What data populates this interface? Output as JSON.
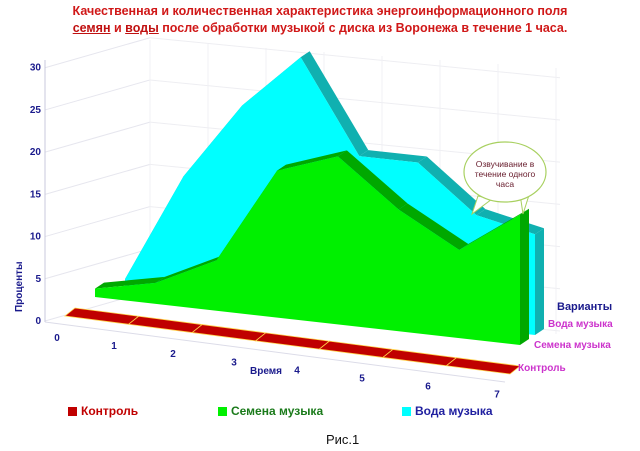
{
  "title": {
    "line1": "Качественная и количественная характеристика энергоинформационного поля",
    "line2_part1": "семян",
    "line2_part2": " и ",
    "line2_part3": "воды",
    "line2_part4": " после обработки музыкой с диска из Воронежа в течение 1 часа."
  },
  "figure_caption": "Рис.1",
  "chart_data": {
    "type": "area",
    "three_d": true,
    "x": [
      0,
      1,
      2,
      3,
      4,
      5,
      6,
      7
    ],
    "xlabel": "Время",
    "ylabel": "Проценты",
    "zlabel": "Варианты",
    "ylim": [
      0,
      30
    ],
    "yticks": [
      0,
      5,
      10,
      15,
      20,
      25,
      30
    ],
    "xticks": [
      "0",
      "1",
      "2",
      "3",
      "4",
      "5",
      "6",
      "7"
    ],
    "grid": true,
    "legend_placement": "bottom",
    "series": [
      {
        "name": "Контроль",
        "color": "#c00000",
        "values": [
          0,
          0,
          0,
          0,
          0,
          0,
          0,
          0
        ]
      },
      {
        "name": "Семена музыка",
        "color": "#00f000",
        "values": [
          1,
          2.5,
          6,
          17.5,
          20,
          14.5,
          10.5,
          15.5
        ]
      },
      {
        "name": "Вода музыка",
        "color": "#00ffff",
        "values": [
          1.3,
          14.3,
          23.5,
          30,
          19,
          19,
          13.5,
          12
        ]
      }
    ],
    "annotation": "Озвучивание в течение одного часа"
  },
  "colors": {
    "title": "#d01818",
    "axis_text": "#1a1a8c",
    "series_label_text": "#cc33cc",
    "legend_control_text": "#c00000",
    "legend_seeds_text": "#1a7a1a",
    "legend_water_text": "#2020a0"
  }
}
